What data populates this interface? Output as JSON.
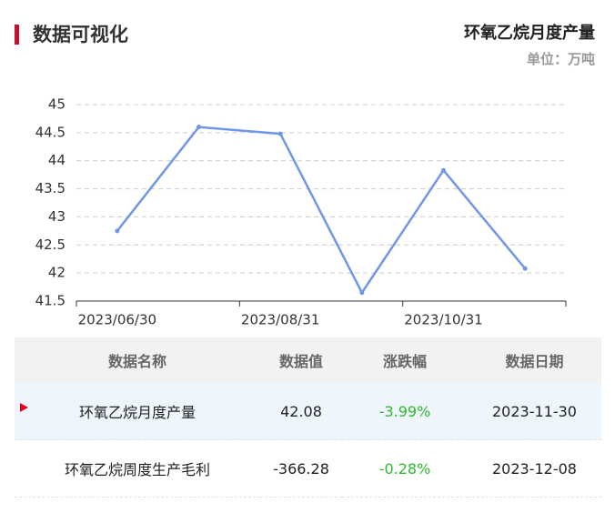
{
  "header": {
    "title": "数据可视化"
  },
  "chart_data": {
    "type": "line",
    "title": "环氧乙烷月度产量",
    "subtitle": "单位：万吨",
    "categories": [
      "2023/06/30",
      null,
      "2023/08/31",
      null,
      "2023/10/31",
      null
    ],
    "series": [
      {
        "name": "环氧乙烷月度产量",
        "color": "#7096e6",
        "values": [
          42.75,
          44.6,
          44.48,
          41.65,
          43.83,
          42.08
        ]
      }
    ],
    "ylim": [
      41.5,
      45
    ],
    "yticks": [
      41.5,
      42,
      42.5,
      43,
      43.5,
      44,
      44.5,
      45
    ],
    "grid": true
  },
  "table": {
    "columns": [
      "数据名称",
      "数据值",
      "涨跌幅",
      "数据日期"
    ],
    "rows": [
      [
        "环氧乙烷月度产量",
        "42.08",
        "-3.99%",
        "2023-11-30"
      ],
      [
        "环氧乙烷周度生产毛利",
        "-366.28",
        "-0.28%",
        "2023-12-08"
      ]
    ]
  }
}
